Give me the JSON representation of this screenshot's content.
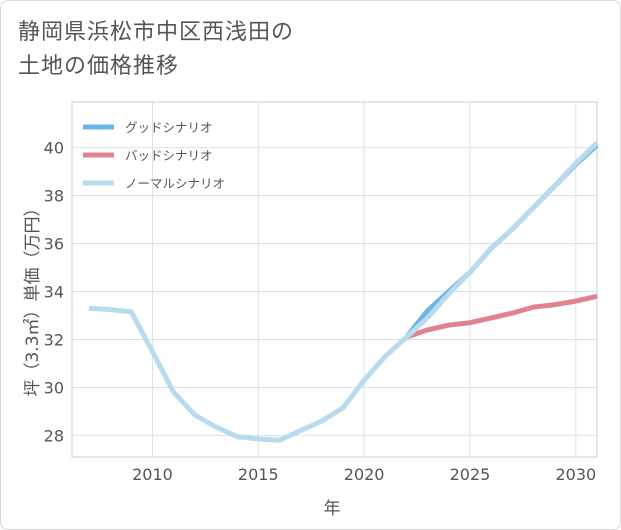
{
  "title_lines": [
    "静岡県浜松市中区西浅田の",
    "土地の価格推移"
  ],
  "chart_data": {
    "type": "line",
    "title": "静岡県浜松市中区西浅田の土地の価格推移",
    "xlabel": "年",
    "ylabel": "坪（3.3㎡）単価（万円）",
    "xlim": [
      2006.2,
      2031
    ],
    "ylim": [
      27.1,
      41.9
    ],
    "xticks": [
      2010,
      2015,
      2020,
      2025,
      2030
    ],
    "yticks": [
      28,
      30,
      32,
      34,
      36,
      38,
      40
    ],
    "grid": true,
    "legend_position": "top-left",
    "series": [
      {
        "name": "グッドシナリオ",
        "color": "#6cb4e4",
        "x": [
          2022,
          2023,
          2024,
          2025,
          2026,
          2027,
          2028,
          2029,
          2030,
          2031
        ],
        "values": [
          32.1,
          33.2,
          34.0,
          34.8,
          35.8,
          36.6,
          37.5,
          38.4,
          39.3,
          40.1
        ]
      },
      {
        "name": "バッドシナリオ",
        "color": "#e0838f",
        "x": [
          2022,
          2023,
          2024,
          2025,
          2026,
          2027,
          2028,
          2029,
          2030,
          2031
        ],
        "values": [
          32.1,
          32.4,
          32.6,
          32.7,
          32.9,
          33.1,
          33.35,
          33.45,
          33.6,
          33.8
        ]
      },
      {
        "name": "ノーマルシナリオ",
        "color": "#b8dbee",
        "x": [
          2007,
          2008,
          2009,
          2010,
          2011,
          2012,
          2013,
          2014,
          2015,
          2016,
          2017,
          2018,
          2019,
          2020,
          2021,
          2022,
          2023,
          2024,
          2025,
          2026,
          2027,
          2028,
          2029,
          2030,
          2031
        ],
        "values": [
          33.3,
          33.25,
          33.15,
          31.5,
          29.8,
          28.85,
          28.35,
          27.95,
          27.85,
          27.8,
          28.2,
          28.6,
          29.15,
          30.3,
          31.3,
          32.1,
          32.9,
          33.9,
          34.8,
          35.8,
          36.6,
          37.5,
          38.4,
          39.35,
          40.2
        ]
      }
    ]
  }
}
